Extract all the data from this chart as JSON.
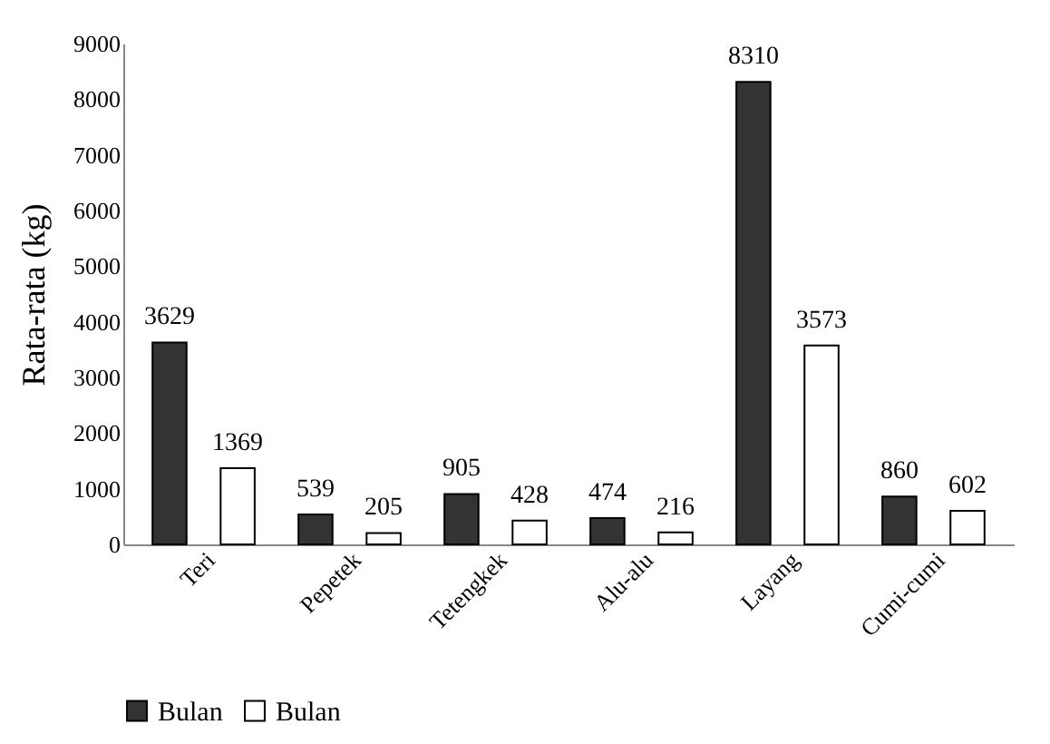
{
  "chart_data": {
    "type": "bar",
    "ylabel": "Rata-rata (kg)",
    "categories": [
      "Teri",
      "Pepetek",
      "Tetengkek",
      "Alu-alu",
      "Layang",
      "Cumi-cumi"
    ],
    "series": [
      {
        "name": "Bulan",
        "color": "#333333",
        "values": [
          3629,
          539,
          905,
          474,
          8310,
          860
        ]
      },
      {
        "name": "Bulan",
        "color": "#ffffff",
        "values": [
          1369,
          205,
          428,
          216,
          3573,
          602
        ]
      }
    ],
    "ylim": [
      0,
      9000
    ],
    "yticks": [
      0,
      1000,
      2000,
      3000,
      4000,
      5000,
      6000,
      7000,
      8000,
      9000
    ],
    "grid": false,
    "legend": "bottom",
    "data_labels": true
  }
}
